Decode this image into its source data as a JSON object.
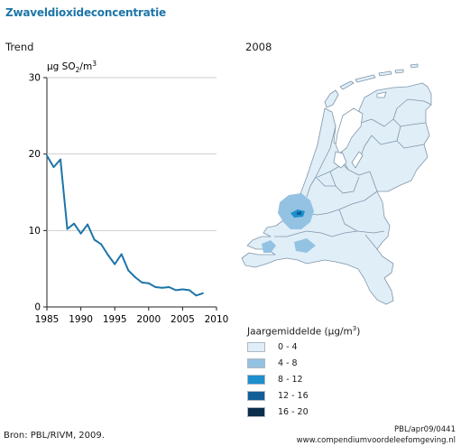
{
  "title": "Zwaveldioxideconcentratie",
  "trend_title": "Trend",
  "map_title": "2008",
  "chart_data": {
    "type": "line",
    "ylabel_main": "µg SO",
    "ylabel_sub": "2",
    "ylabel_tail": "/m",
    "ylabel_sup": "3",
    "xlim": [
      1985,
      2010
    ],
    "ylim": [
      0,
      30
    ],
    "xticks": [
      1985,
      1990,
      1995,
      2000,
      2005,
      2010
    ],
    "yticks": [
      0,
      10,
      20,
      30
    ],
    "series": [
      {
        "color": "#1d75a8",
        "x": [
          1985,
          1986,
          1987,
          1988,
          1989,
          1990,
          1991,
          1992,
          1993,
          1994,
          1995,
          1996,
          1997,
          1998,
          1999,
          2000,
          2001,
          2002,
          2003,
          2004,
          2005,
          2006,
          2007,
          2008
        ],
        "y": [
          19.8,
          18.3,
          19.3,
          10.2,
          10.9,
          9.6,
          10.8,
          8.8,
          8.2,
          6.8,
          5.6,
          6.9,
          4.8,
          3.9,
          3.2,
          3.1,
          2.6,
          2.5,
          2.6,
          2.2,
          2.3,
          2.2,
          1.5,
          1.8
        ]
      }
    ]
  },
  "legend": {
    "title_prefix": "Jaargemiddelde (µg/m",
    "title_sup": "3",
    "title_suffix": ")",
    "items": [
      {
        "label": "0 - 4",
        "color": "#e0eef8"
      },
      {
        "label": "4 - 8",
        "color": "#94c2e2"
      },
      {
        "label": "8 - 12",
        "color": "#1c8fcc"
      },
      {
        "label": "12 - 16",
        "color": "#115f97"
      },
      {
        "label": "16 - 20",
        "color": "#0a2e4c"
      }
    ]
  },
  "source": "Bron: PBL/RIVM, 2009.",
  "credit_code": "PBL/apr09/0441",
  "credit_url": "www.compendiumvoordeleefomgeving.nl"
}
